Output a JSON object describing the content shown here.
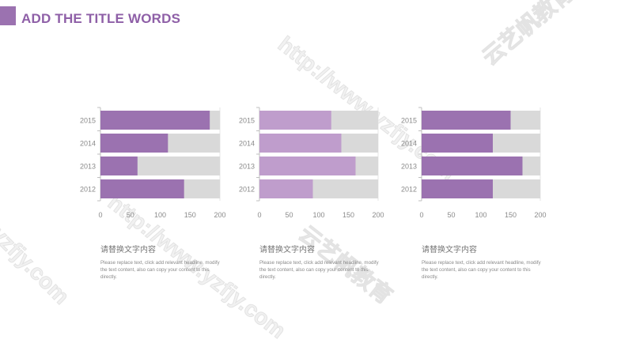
{
  "header": {
    "title": "ADD THE TITLE WORDS"
  },
  "colors": {
    "accent": "#9b72b0",
    "light_accent": "#bf9dcc",
    "track": "#d9d9d9",
    "axis": "#bfbfbf"
  },
  "watermarks": [
    "http://www.yzfjy.com",
    "云艺帆教育",
    "http://www.yzfjy.com",
    "云艺帆教育",
    "yzfjy.com"
  ],
  "chart_data": [
    {
      "type": "bar",
      "orientation": "horizontal",
      "categories": [
        "2015",
        "2014",
        "2013",
        "2012"
      ],
      "series": [
        {
          "values": [
            183,
            113,
            62,
            140
          ]
        },
        {
          "values": [
            200,
            200,
            200,
            200
          ]
        }
      ],
      "xlim": [
        0,
        200
      ],
      "xticks": [
        "0",
        "50",
        "100",
        "150",
        "200"
      ],
      "color": "#9b72b0",
      "caption": {
        "heading": "请替换文字内容",
        "body": "Please replace text, click add relevant headline, modify the text content, also can copy your content to this directly."
      }
    },
    {
      "type": "bar",
      "orientation": "horizontal",
      "categories": [
        "2015",
        "2014",
        "2013",
        "2012"
      ],
      "series": [
        {
          "values": [
            121,
            138,
            162,
            90
          ]
        },
        {
          "values": [
            200,
            200,
            200,
            200
          ]
        }
      ],
      "xlim": [
        0,
        200
      ],
      "xticks": [
        "0",
        "50",
        "100",
        "150",
        "200"
      ],
      "color": "#bf9dcc",
      "caption": {
        "heading": "请替换文字内容",
        "body": "Please replace text, click add relevant headline, modify the text content, also can copy your content to this directly."
      }
    },
    {
      "type": "bar",
      "orientation": "horizontal",
      "categories": [
        "2015",
        "2014",
        "2013",
        "2012"
      ],
      "series": [
        {
          "values": [
            150,
            120,
            170,
            120
          ]
        },
        {
          "values": [
            200,
            200,
            200,
            200
          ]
        }
      ],
      "xlim": [
        0,
        200
      ],
      "xticks": [
        "0",
        "50",
        "100",
        "150",
        "200"
      ],
      "color": "#9b72b0",
      "caption": {
        "heading": "请替换文字内容",
        "body": "Please replace text, click add relevant headline, modify the text content, also can copy your content to this directly."
      }
    }
  ]
}
